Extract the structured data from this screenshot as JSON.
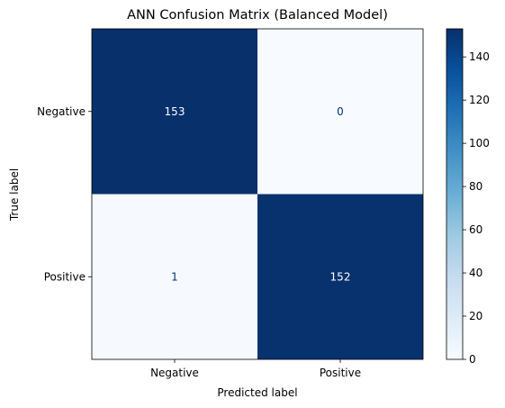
{
  "chart_data": {
    "type": "heatmap",
    "title": "ANN Confusion Matrix (Balanced Model)",
    "xlabel": "Predicted label",
    "ylabel": "True label",
    "x_categories": [
      "Negative",
      "Positive"
    ],
    "y_categories": [
      "Negative",
      "Positive"
    ],
    "values": [
      [
        153,
        0
      ],
      [
        1,
        152
      ]
    ],
    "colormap": "Blues",
    "color_low": "#f7fbff",
    "color_high": "#08306b",
    "text_dark": "#08306b",
    "text_light": "#ffffff",
    "colorbar": {
      "range": [
        0,
        153
      ],
      "ticks": [
        "0",
        "20",
        "40",
        "60",
        "80",
        "100",
        "120",
        "140"
      ]
    }
  }
}
